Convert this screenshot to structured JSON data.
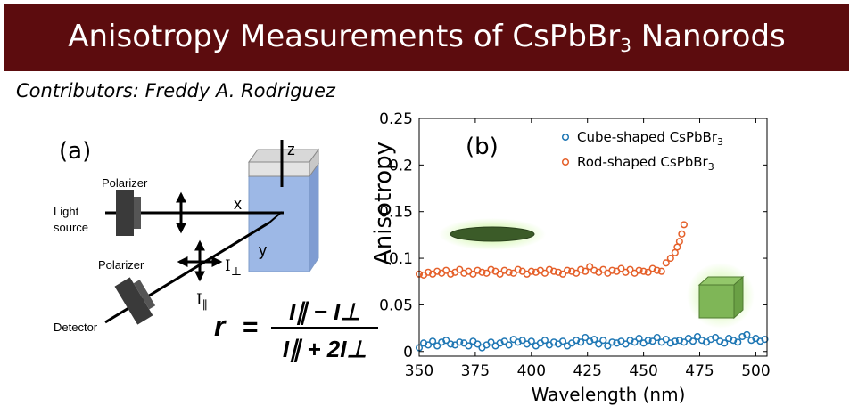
{
  "title": {
    "main": "Anisotropy Measurements of CsPbBr",
    "sub": "3",
    "tail": " Nanorods"
  },
  "contributors": "Contributors: Freddy A. Rodriguez",
  "colors": {
    "banner": "#5c0c0e",
    "cube": "#1f77b4",
    "rod": "#e5602a",
    "cuvette": "#9db8e6"
  },
  "panel_a": {
    "label": "(a)",
    "polarizer_top": "Polarizer",
    "light_source_1": "Light",
    "light_source_2": "source",
    "polarizer_bottom": "Polarizer",
    "detector": "Detector",
    "axis_x": "x",
    "axis_y": "y",
    "axis_z": "z",
    "i_perp": "I",
    "i_perp_sub": "⊥",
    "i_par": "I",
    "i_par_sub": "∥",
    "formula_r": "r",
    "formula_eq": "=",
    "formula_num": "I∥ − I⊥",
    "formula_den": "I∥ + 2I⊥"
  },
  "chart_data": {
    "type": "scatter",
    "panel_label": "(b)",
    "xlabel": "Wavelength (nm)",
    "ylabel": "Anisotropy",
    "xlim": [
      350,
      505
    ],
    "ylim": [
      -0.005,
      0.25
    ],
    "xticks": [
      "350",
      "375",
      "400",
      "425",
      "450",
      "475",
      "500"
    ],
    "yticks": [
      "0",
      "0.05",
      "0.1",
      "0.15",
      "0.2",
      "0.25"
    ],
    "legend_position": "top-right",
    "series": [
      {
        "name": "Cube-shaped CsPbBr3",
        "legend_main": "Cube-shaped CsPbBr",
        "legend_sub": "3",
        "x": [
          350,
          352,
          354,
          356,
          358,
          360,
          362,
          364,
          366,
          368,
          370,
          372,
          374,
          376,
          378,
          380,
          382,
          384,
          386,
          388,
          390,
          392,
          394,
          396,
          398,
          400,
          402,
          404,
          406,
          408,
          410,
          412,
          414,
          416,
          418,
          420,
          422,
          424,
          426,
          428,
          430,
          432,
          434,
          436,
          438,
          440,
          442,
          444,
          446,
          448,
          450,
          452,
          454,
          456,
          458,
          460,
          462,
          464,
          466,
          468,
          470,
          472,
          474,
          476,
          478,
          480,
          482,
          484,
          486,
          488,
          490,
          492,
          494,
          496,
          498,
          500,
          502,
          504
        ],
        "y": [
          0.004,
          0.009,
          0.007,
          0.011,
          0.006,
          0.01,
          0.012,
          0.008,
          0.007,
          0.01,
          0.009,
          0.006,
          0.011,
          0.008,
          0.004,
          0.007,
          0.01,
          0.006,
          0.009,
          0.011,
          0.007,
          0.013,
          0.01,
          0.012,
          0.008,
          0.011,
          0.006,
          0.009,
          0.012,
          0.007,
          0.01,
          0.008,
          0.011,
          0.006,
          0.009,
          0.012,
          0.01,
          0.015,
          0.011,
          0.013,
          0.008,
          0.012,
          0.006,
          0.01,
          0.009,
          0.011,
          0.008,
          0.012,
          0.01,
          0.014,
          0.009,
          0.012,
          0.011,
          0.015,
          0.01,
          0.013,
          0.009,
          0.011,
          0.012,
          0.01,
          0.014,
          0.011,
          0.016,
          0.012,
          0.01,
          0.013,
          0.015,
          0.011,
          0.009,
          0.014,
          0.012,
          0.01,
          0.016,
          0.018,
          0.012,
          0.014,
          0.011,
          0.013
        ]
      },
      {
        "name": "Rod-shaped CsPbBr3",
        "legend_main": "Rod-shaped CsPbBr",
        "legend_sub": "3",
        "x": [
          350,
          352,
          354,
          356,
          358,
          360,
          362,
          364,
          366,
          368,
          370,
          372,
          374,
          376,
          378,
          380,
          382,
          384,
          386,
          388,
          390,
          392,
          394,
          396,
          398,
          400,
          402,
          404,
          406,
          408,
          410,
          412,
          414,
          416,
          418,
          420,
          422,
          424,
          426,
          428,
          430,
          432,
          434,
          436,
          438,
          440,
          442,
          444,
          446,
          448,
          450,
          452,
          454,
          456,
          458,
          460,
          462,
          464,
          465,
          466,
          467,
          468
        ],
        "y": [
          0.083,
          0.082,
          0.085,
          0.083,
          0.086,
          0.084,
          0.087,
          0.083,
          0.085,
          0.088,
          0.084,
          0.086,
          0.083,
          0.087,
          0.085,
          0.084,
          0.088,
          0.086,
          0.083,
          0.087,
          0.085,
          0.084,
          0.088,
          0.086,
          0.083,
          0.086,
          0.085,
          0.087,
          0.084,
          0.088,
          0.086,
          0.085,
          0.083,
          0.087,
          0.086,
          0.084,
          0.088,
          0.086,
          0.091,
          0.087,
          0.085,
          0.088,
          0.084,
          0.087,
          0.086,
          0.089,
          0.085,
          0.088,
          0.084,
          0.087,
          0.086,
          0.085,
          0.089,
          0.087,
          0.086,
          0.095,
          0.1,
          0.106,
          0.112,
          0.118,
          0.126,
          0.136
        ]
      }
    ]
  }
}
